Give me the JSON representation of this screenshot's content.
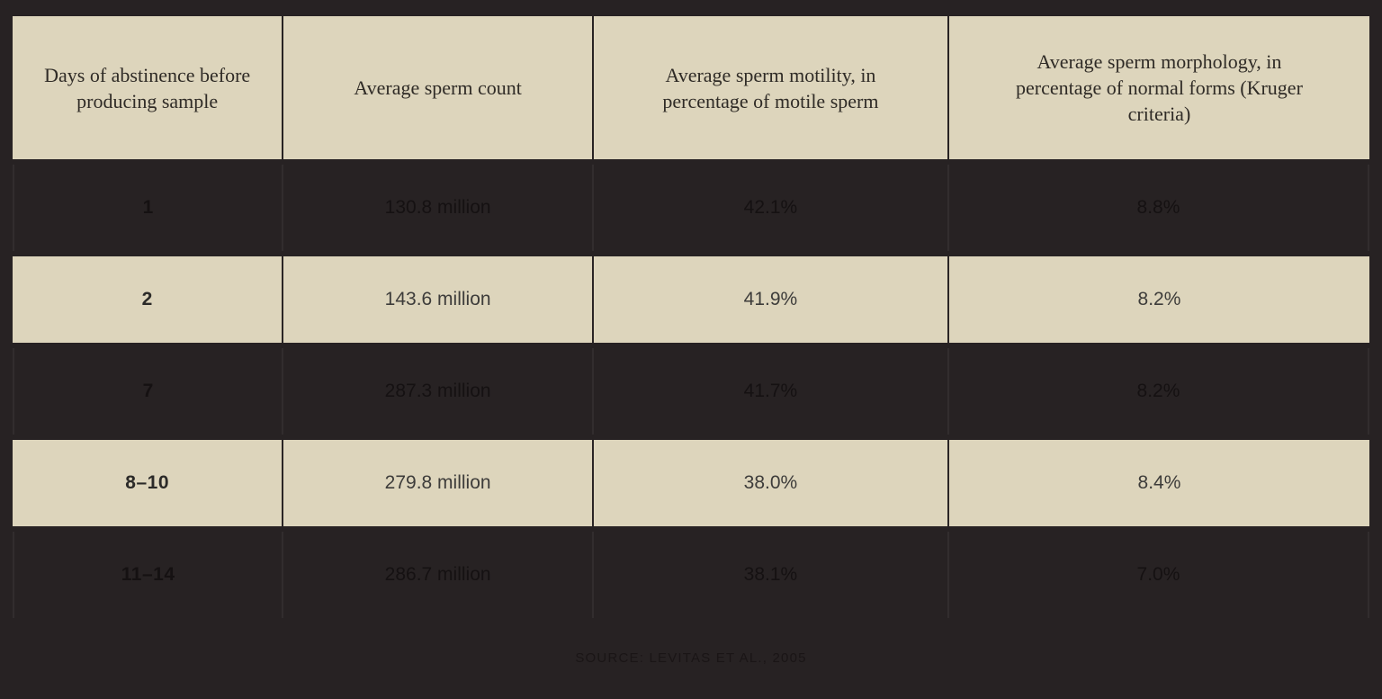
{
  "chart_data": {
    "type": "table",
    "title": "",
    "columns": [
      "Days of abstinence before producing sample",
      "Average sperm count",
      "Average sperm motility, in percentage of motile sperm",
      "Average sperm morphology, in percentage of normal forms (Kruger criteria)"
    ],
    "rows": [
      [
        "1",
        "130.8 million",
        "42.1%",
        "8.8%"
      ],
      [
        "2",
        "143.6 million",
        "41.9%",
        "8.2%"
      ],
      [
        "7",
        "287.3 million",
        "41.7%",
        "8.2%"
      ],
      [
        "8–10",
        "279.8 million",
        "38.0%",
        "8.4%"
      ],
      [
        "11–14",
        "286.7 million",
        "38.1%",
        "7.0%"
      ]
    ],
    "numeric": {
      "days_of_abstinence": [
        "1",
        "2",
        "7",
        "8-10",
        "11-14"
      ],
      "avg_sperm_count_million": [
        130.8,
        143.6,
        287.3,
        279.8,
        286.7
      ],
      "avg_motility_percent": [
        42.1,
        41.9,
        41.7,
        38.0,
        38.1
      ],
      "avg_morphology_percent_normal_forms": [
        8.8,
        8.2,
        8.2,
        8.4,
        7.0
      ]
    },
    "source": "SOURCE: LEVITAS ET AL., 2005"
  },
  "colors": {
    "background": "#272223",
    "band_cream": "#ddd5bc",
    "header_text": "#2f2b26",
    "light_row_text": "#3d3c3a",
    "dark_row_text": "#151112",
    "separator": "#2a2525"
  }
}
